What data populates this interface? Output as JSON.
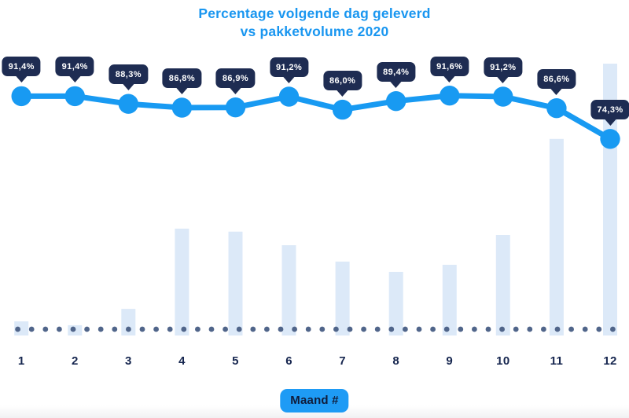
{
  "page": {
    "background": "#ffffff"
  },
  "colors": {
    "title_blue": "#1996F0",
    "accent_blue": "#189AF2",
    "tooltip_navy": "#1E2C52",
    "bar_fill": "#DCE9F8",
    "baseline_dot": "#50658A",
    "label_navy": "#16264F",
    "badge_blue": "#1E9BF5",
    "badge_text": "#101C3A"
  },
  "chart": {
    "title_lines": [
      "Percentage volgende dag geleverd",
      "vs pakketvolume 2020"
    ],
    "xlabel": "Maand #"
  },
  "chart_data": {
    "type": "combo-line-bar",
    "title": "Percentage volgende dag geleverd vs pakketvolume 2020",
    "xlabel": "Maand #",
    "categories": [
      "1",
      "2",
      "3",
      "4",
      "5",
      "6",
      "7",
      "8",
      "9",
      "10",
      "11",
      "12"
    ],
    "series": [
      {
        "name": "Percentage volgende dag geleverd",
        "type": "line",
        "unit": "%",
        "values": [
          91.4,
          91.4,
          88.3,
          86.8,
          86.9,
          91.2,
          86.0,
          89.4,
          91.6,
          91.2,
          86.6,
          74.3
        ],
        "labels": [
          "91,4%",
          "91,4%",
          "88,3%",
          "86,8%",
          "86,9%",
          "91,2%",
          "86,0%",
          "89,4%",
          "91,6%",
          "91,2%",
          "86,6%",
          "74,3%"
        ]
      },
      {
        "name": "pakketvolume",
        "type": "bar",
        "unit": "relative volume (max month = 100, no value axis shown)",
        "values": [
          5.2,
          3.8,
          9.8,
          39.3,
          38.2,
          33.2,
          27.2,
          23.4,
          26.0,
          37.0,
          72.3,
          100
        ]
      }
    ],
    "legend": "none",
    "grid": false,
    "value_labels": "dark tooltip badges above each line point",
    "baseline": "dotted horizontal line along x-axis"
  }
}
